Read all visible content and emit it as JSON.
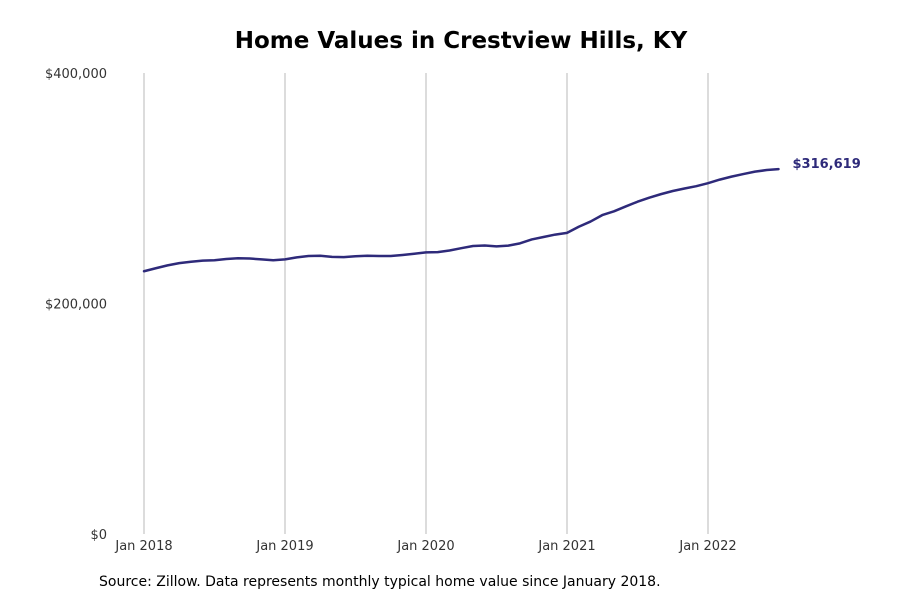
{
  "chart_data": {
    "type": "line",
    "title": "Home Values in Crestview Hills, KY",
    "xlabel": "",
    "ylabel": "",
    "source": "Source: Zillow. Data represents monthly typical home value since January 2018.",
    "ylim": [
      0,
      400000
    ],
    "y_ticks": [
      {
        "value": 0,
        "label": "$0"
      },
      {
        "value": 200000,
        "label": "$200,000"
      },
      {
        "value": 400000,
        "label": "$400,000"
      }
    ],
    "x_ticks": [
      {
        "value": "2018-01",
        "label": "Jan 2018"
      },
      {
        "value": "2019-01",
        "label": "Jan 2019"
      },
      {
        "value": "2020-01",
        "label": "Jan 2020"
      },
      {
        "value": "2021-01",
        "label": "Jan 2021"
      },
      {
        "value": "2022-01",
        "label": "Jan 2022"
      }
    ],
    "grid": {
      "vertical": true,
      "horizontal": false
    },
    "line_color": "#2e2a7a",
    "end_label": "$316,619",
    "x": [
      "2018-01",
      "2018-02",
      "2018-03",
      "2018-04",
      "2018-05",
      "2018-06",
      "2018-07",
      "2018-08",
      "2018-09",
      "2018-10",
      "2018-11",
      "2018-12",
      "2019-01",
      "2019-02",
      "2019-03",
      "2019-04",
      "2019-05",
      "2019-06",
      "2019-07",
      "2019-08",
      "2019-09",
      "2019-10",
      "2019-11",
      "2019-12",
      "2020-01",
      "2020-02",
      "2020-03",
      "2020-04",
      "2020-05",
      "2020-06",
      "2020-07",
      "2020-08",
      "2020-09",
      "2020-10",
      "2020-11",
      "2020-12",
      "2021-01",
      "2021-02",
      "2021-03",
      "2021-04",
      "2021-05",
      "2021-06",
      "2021-07",
      "2021-08",
      "2021-09",
      "2021-10",
      "2021-11",
      "2021-12",
      "2022-01",
      "2022-02",
      "2022-03",
      "2022-04",
      "2022-05",
      "2022-06",
      "2022-07"
    ],
    "values": [
      228000,
      230600,
      233100,
      235000,
      236200,
      237200,
      237500,
      238600,
      239300,
      239000,
      238300,
      237500,
      238300,
      240000,
      241200,
      241400,
      240500,
      240200,
      241000,
      241400,
      241200,
      241200,
      242100,
      243200,
      244400,
      244600,
      246000,
      248000,
      249900,
      250300,
      249600,
      250200,
      252200,
      255600,
      257700,
      259800,
      261300,
      266600,
      271100,
      276700,
      280000,
      284200,
      288300,
      291800,
      294900,
      297600,
      299800,
      301800,
      304400,
      307500,
      310100,
      312300,
      314400,
      315800,
      316619
    ]
  }
}
